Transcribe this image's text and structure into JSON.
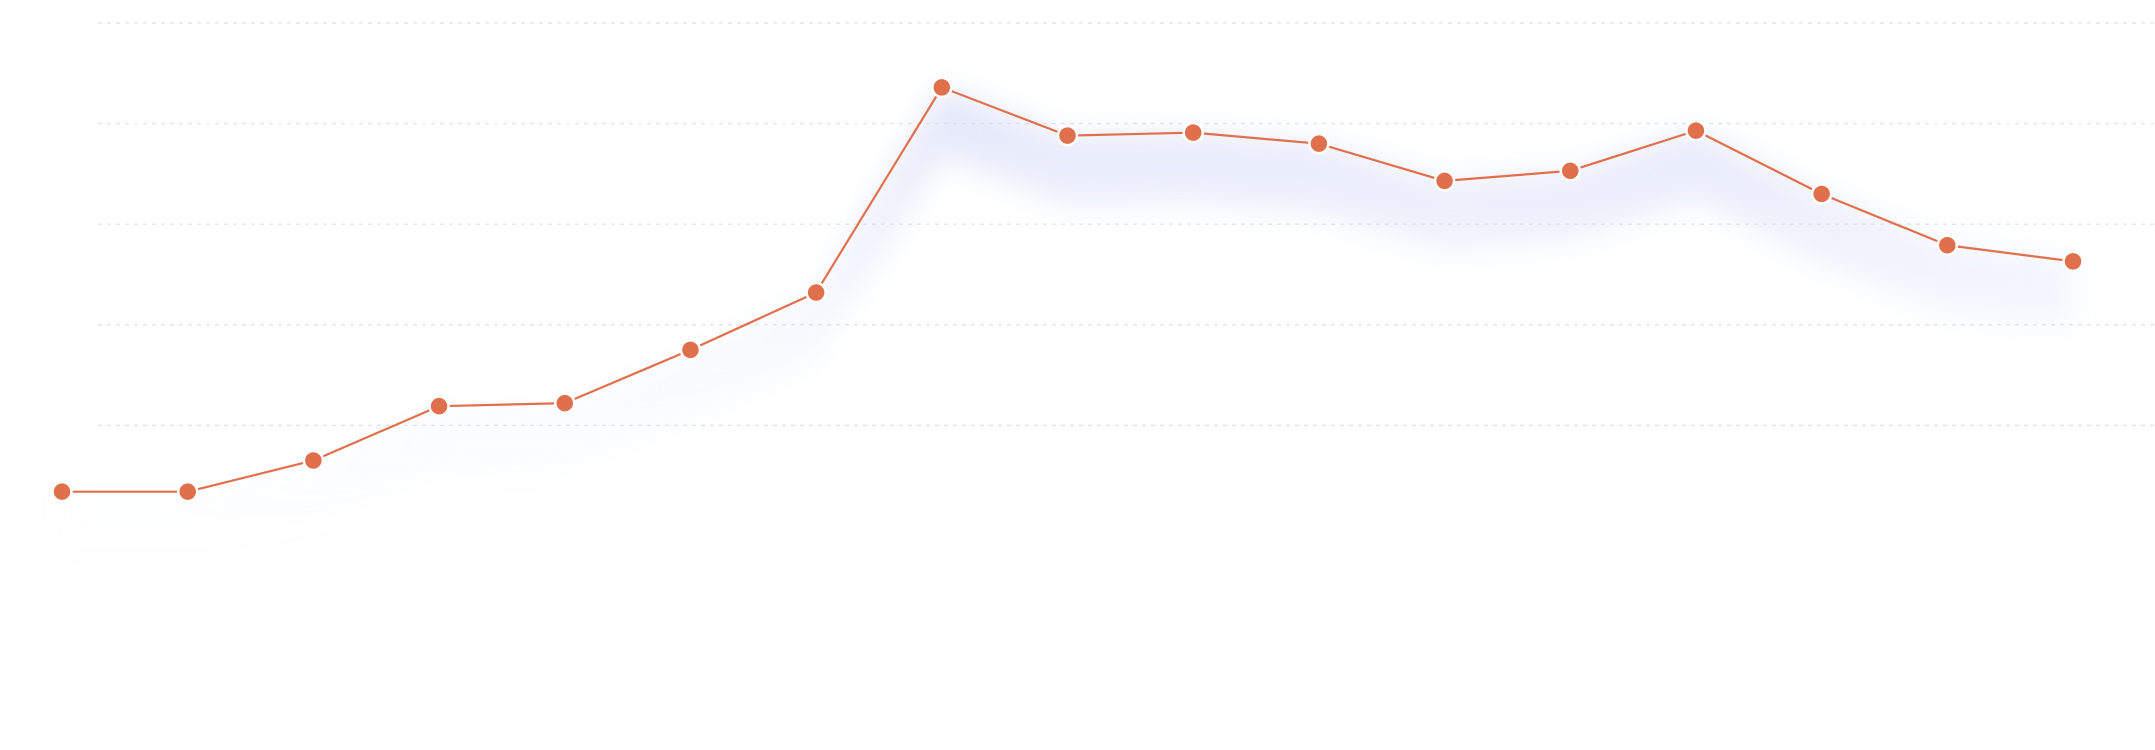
{
  "chart_data": {
    "type": "line",
    "title": "",
    "xlabel": "",
    "ylabel": "",
    "ylim": [
      0,
      7
    ],
    "grid": true,
    "legend": "none",
    "x": [
      1,
      2,
      3,
      4,
      5,
      6,
      7,
      8,
      9,
      10,
      11,
      12,
      13,
      14,
      15,
      16,
      17
    ],
    "series": [
      {
        "values": [
          2.34,
          2.34,
          2.65,
          3.19,
          3.22,
          3.75,
          4.32,
          6.36,
          5.88,
          5.91,
          5.8,
          5.43,
          5.53,
          5.93,
          5.3,
          4.79,
          4.63
        ],
        "color": "#e0704c"
      }
    ],
    "colors": {
      "line": "#e0704c",
      "point": "#e0704c",
      "area": "#cdd3f6",
      "grid": "#e3e5ea"
    }
  }
}
